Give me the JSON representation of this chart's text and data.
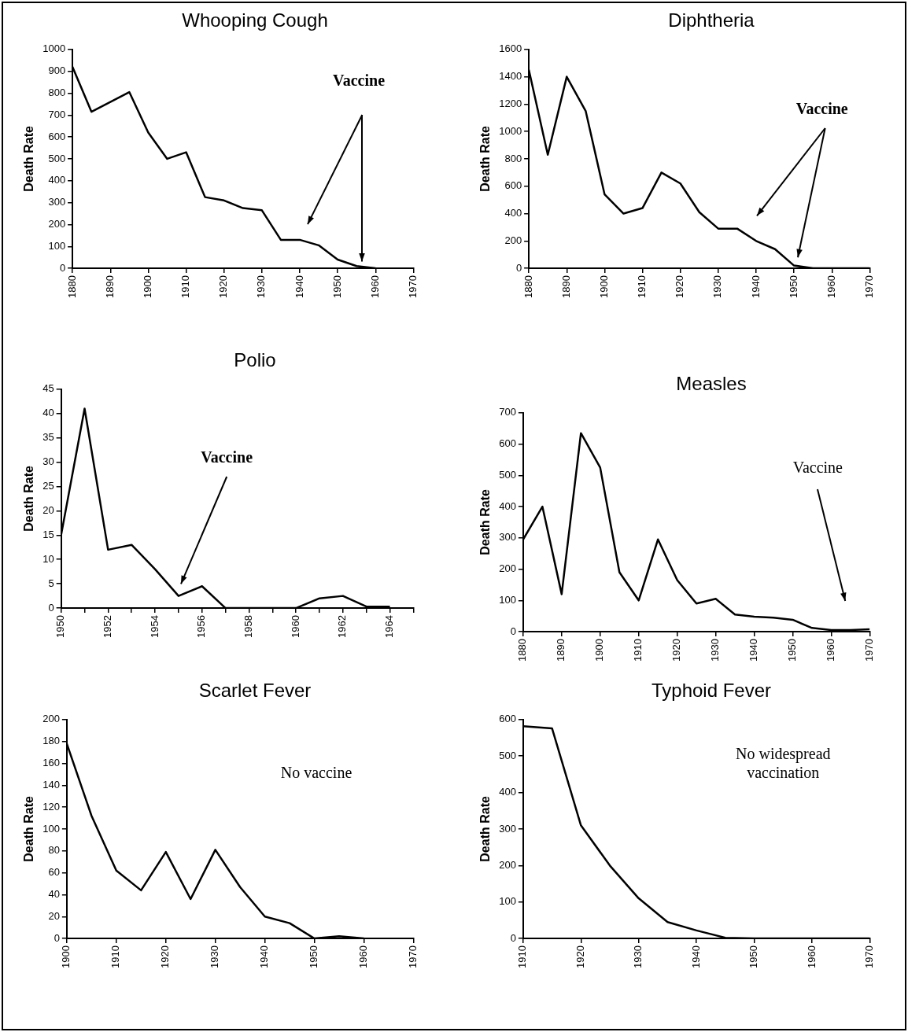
{
  "chart_data": [
    {
      "type": "line",
      "title": "Whooping Cough",
      "ylabel": "Death Rate",
      "annotations": [
        "Vaccine"
      ],
      "marker": "none",
      "color": "#000000",
      "x": [
        1880,
        1885,
        1890,
        1895,
        1900,
        1905,
        1910,
        1915,
        1920,
        1925,
        1930,
        1935,
        1940,
        1945,
        1950,
        1955,
        1960
      ],
      "values": [
        920,
        715,
        760,
        805,
        620,
        500,
        530,
        325,
        310,
        275,
        265,
        130,
        130,
        105,
        40,
        10,
        0
      ],
      "xlim": [
        1880,
        1970
      ],
      "xticks": [
        1880,
        1890,
        1900,
        1910,
        1920,
        1930,
        1940,
        1950,
        1960,
        1970
      ],
      "ylim": [
        0,
        1000
      ],
      "yticks": [
        0,
        100,
        200,
        300,
        400,
        500,
        600,
        700,
        800,
        900,
        1000
      ]
    },
    {
      "type": "line",
      "title": "Diphtheria",
      "ylabel": "Death Rate",
      "annotations": [
        "Vaccine"
      ],
      "marker": "none",
      "color": "#000000",
      "x": [
        1880,
        1885,
        1890,
        1895,
        1900,
        1905,
        1910,
        1915,
        1920,
        1925,
        1930,
        1935,
        1940,
        1945,
        1950,
        1955,
        1960,
        1965,
        1970
      ],
      "values": [
        1450,
        830,
        1400,
        1150,
        540,
        400,
        440,
        700,
        620,
        410,
        290,
        290,
        200,
        140,
        20,
        0,
        0,
        0,
        0
      ],
      "xlim": [
        1880,
        1970
      ],
      "xticks": [
        1880,
        1890,
        1900,
        1910,
        1920,
        1930,
        1940,
        1950,
        1960,
        1970
      ],
      "ylim": [
        0,
        1600
      ],
      "yticks": [
        0,
        200,
        400,
        600,
        800,
        1000,
        1200,
        1400,
        1600
      ]
    },
    {
      "type": "line",
      "title": "Polio",
      "ylabel": "Death Rate",
      "annotations": [
        "Vaccine"
      ],
      "marker": "none",
      "color": "#000000",
      "x": [
        1950,
        1951,
        1952,
        1953,
        1954,
        1955,
        1956,
        1957,
        1958,
        1959,
        1960,
        1961,
        1962,
        1963,
        1964
      ],
      "values": [
        15,
        41,
        12,
        13,
        8,
        2.5,
        4.5,
        0,
        0,
        0,
        0,
        2,
        2.5,
        0.3,
        0.3
      ],
      "xlim": [
        1950,
        1965
      ],
      "xticks": [
        1950,
        {
          "value": 1951,
          "label": null
        },
        1952,
        {
          "value": 1953,
          "label": null
        },
        1954,
        {
          "value": 1955,
          "label": null
        },
        1956,
        {
          "value": 1957,
          "label": null
        },
        1958,
        {
          "value": 1959,
          "label": null
        },
        1960,
        {
          "value": 1961,
          "label": null
        },
        1962,
        {
          "value": 1963,
          "label": null
        },
        1964,
        {
          "value": 1965,
          "label": null
        }
      ],
      "ylim": [
        0,
        45
      ],
      "yticks": [
        0,
        5,
        10,
        15,
        20,
        25,
        30,
        35,
        40,
        45
      ]
    },
    {
      "type": "line",
      "title": "Measles",
      "ylabel": "Death Rate",
      "annotations": [
        "Vaccine"
      ],
      "marker": "none",
      "color": "#000000",
      "x": [
        1880,
        1885,
        1890,
        1895,
        1900,
        1905,
        1910,
        1915,
        1920,
        1925,
        1930,
        1935,
        1940,
        1945,
        1950,
        1955,
        1960,
        1965,
        1970
      ],
      "values": [
        295,
        400,
        120,
        635,
        525,
        190,
        100,
        295,
        165,
        90,
        105,
        55,
        48,
        45,
        38,
        12,
        5,
        5,
        8
      ],
      "xlim": [
        1880,
        1970
      ],
      "xticks": [
        1880,
        1890,
        1900,
        1910,
        1920,
        1930,
        1940,
        1950,
        1960,
        1970
      ],
      "ylim": [
        0,
        700
      ],
      "yticks": [
        0,
        100,
        200,
        300,
        400,
        500,
        600,
        700
      ]
    },
    {
      "type": "line",
      "title": "Scarlet Fever",
      "ylabel": "Death Rate",
      "annotations": [
        "No vaccine"
      ],
      "marker": "none",
      "color": "#000000",
      "x": [
        1900,
        1905,
        1910,
        1915,
        1920,
        1925,
        1930,
        1935,
        1940,
        1945,
        1950,
        1955,
        1960
      ],
      "values": [
        178,
        112,
        62,
        44,
        79,
        36,
        81,
        47,
        20,
        14,
        0,
        2,
        0
      ],
      "xlim": [
        1900,
        1970
      ],
      "xticks": [
        1900,
        1910,
        1920,
        1930,
        1940,
        1950,
        1960,
        1970
      ],
      "ylim": [
        0,
        200
      ],
      "yticks": [
        0,
        20,
        40,
        60,
        80,
        100,
        120,
        140,
        160,
        180,
        200
      ]
    },
    {
      "type": "line",
      "title": "Typhoid Fever",
      "ylabel": "Death Rate",
      "annotations": [
        "No widespread vaccination"
      ],
      "marker": "none",
      "color": "#000000",
      "x": [
        1910,
        1915,
        1920,
        1925,
        1930,
        1935,
        1940,
        1945,
        1950,
        1960,
        1970
      ],
      "values": [
        582,
        576,
        310,
        200,
        110,
        45,
        22,
        2,
        0,
        0,
        0
      ],
      "xlim": [
        1910,
        1970
      ],
      "xticks": [
        1910,
        1920,
        1930,
        1940,
        1950,
        1960,
        1970
      ],
      "ylim": [
        0,
        600
      ],
      "yticks": [
        0,
        100,
        200,
        300,
        400,
        500,
        600
      ]
    }
  ]
}
